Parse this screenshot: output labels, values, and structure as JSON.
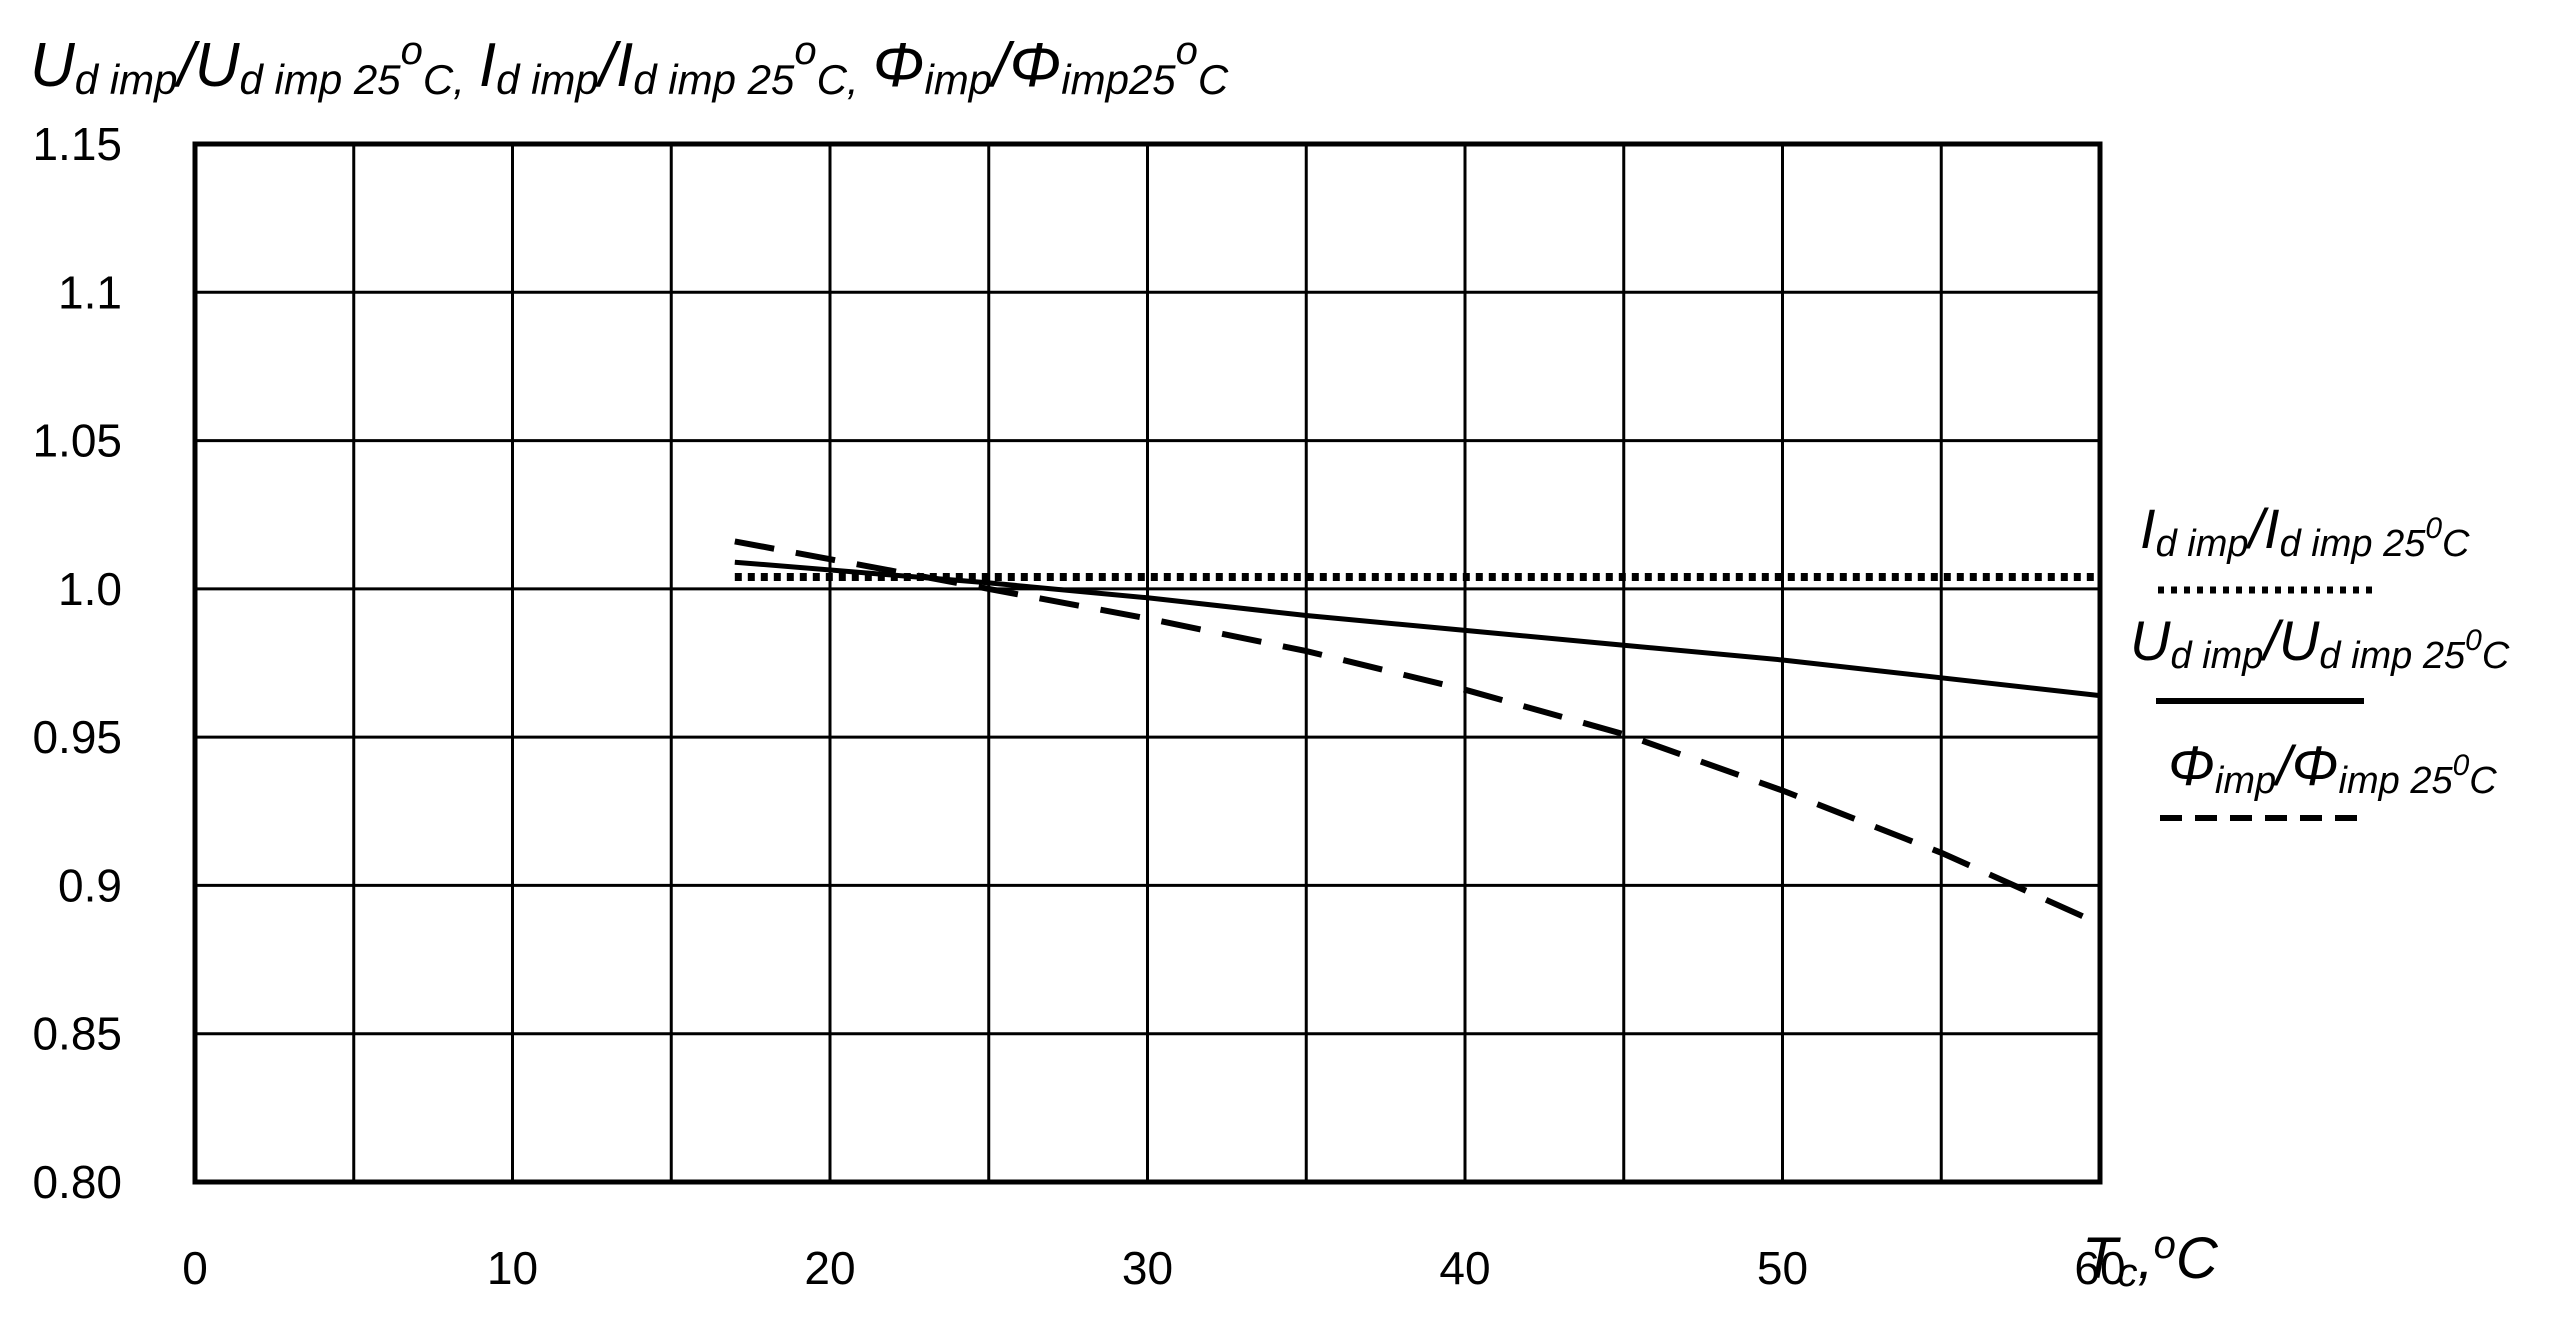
{
  "chart_data": {
    "type": "line",
    "title_parts": {
      "u_main": "U",
      "u_sub": "d imp",
      "u_den": "/U",
      "u_den_sub": "d imp 25",
      "u_sup": "o",
      "u_unit": "C,",
      "i_main": "I",
      "i_sub": "d imp",
      "i_den": "/I",
      "i_den_sub": "d imp 25",
      "i_sup": "o",
      "i_unit": "C,",
      "phi_main": "Φ",
      "phi_sub": "imp",
      "phi_den": "/Φ",
      "phi_den_sub": "imp25",
      "phi_sup": "o",
      "phi_unit": "C"
    },
    "xlabel_parts": {
      "main": "T",
      "sub": "c",
      "comma": ",",
      "sup": "o",
      "unit": "C"
    },
    "xlim": [
      0,
      60
    ],
    "ylim": [
      0.8,
      1.15
    ],
    "x_ticks": [
      "0",
      "10",
      "20",
      "30",
      "40",
      "50",
      "60"
    ],
    "y_ticks": [
      "0.80",
      "0.85",
      "0.9",
      "0.95",
      "1.0",
      "1.05",
      "1.1",
      "1.15"
    ],
    "grid": true,
    "series": [
      {
        "name": "Id imp/Id imp 25oC",
        "style": "dotted",
        "color": "#000000",
        "x": [
          17,
          60
        ],
        "y": [
          1.004,
          1.004
        ]
      },
      {
        "name": "Ud imp/Ud imp 25oC",
        "style": "solid",
        "color": "#000000",
        "x": [
          17,
          25,
          30,
          35,
          40,
          45,
          50,
          55,
          60
        ],
        "y": [
          1.009,
          1.002,
          0.997,
          0.991,
          0.986,
          0.981,
          0.976,
          0.97,
          0.964
        ]
      },
      {
        "name": "Φimp/Φimp 25oC",
        "style": "dashed",
        "color": "#000000",
        "x": [
          17,
          20,
          25,
          30,
          35,
          40,
          45,
          50,
          55,
          60
        ],
        "y": [
          1.016,
          1.01,
          1.0,
          0.99,
          0.979,
          0.966,
          0.951,
          0.932,
          0.911,
          0.887
        ]
      }
    ],
    "legend": {
      "placement": "right",
      "entries": [
        {
          "main": "I",
          "sub": "d imp",
          "den": "/I",
          "den_sub": "d imp 25",
          "sup": "0",
          "unit": "C"
        },
        {
          "main": "U",
          "sub": "d imp",
          "den": "/U",
          "den_sub": "d imp 25",
          "sup": "0",
          "unit": "C"
        },
        {
          "main": "Φ",
          "sub": "imp",
          "den": "/Φ",
          "den_sub": "imp 25",
          "sup": "0",
          "unit": "C"
        }
      ]
    }
  }
}
